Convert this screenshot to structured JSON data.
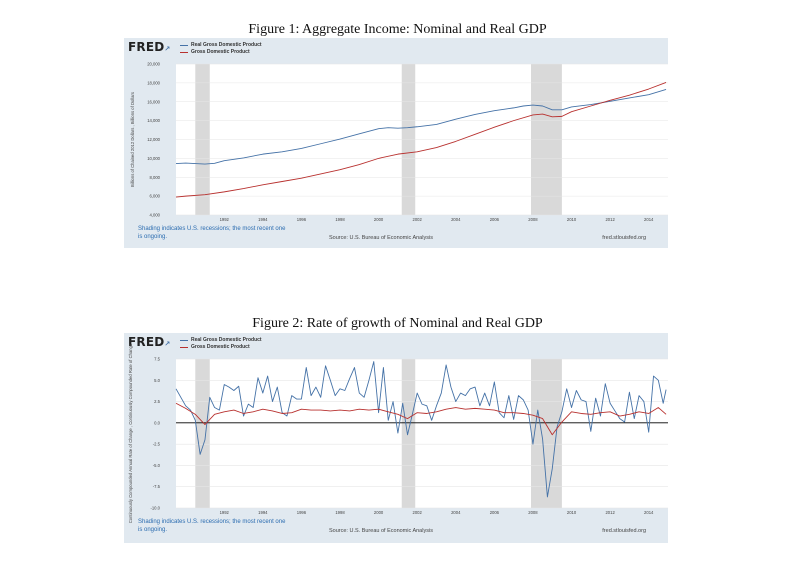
{
  "figure1": {
    "caption": "Figure 1: Aggregate Income: Nominal and Real GDP",
    "brand": "FRED",
    "shading_note": "Shading indicates U.S. recessions; the most recent one is ongoing.",
    "source": "Source: U.S. Bureau of Economic Analysis",
    "url": "fred.stlouisfed.org"
  },
  "figure2": {
    "caption": "Figure 2: Rate of growth of Nominal and Real GDP",
    "brand": "FRED",
    "shading_note": "Shading indicates U.S. recessions; the most recent one is ongoing.",
    "source": "Source: U.S. Bureau of Economic Analysis",
    "url": "fred.stlouisfed.org"
  },
  "colors": {
    "real": "#4572a7",
    "nominal": "#b8312f",
    "recession": "#d9d9d9",
    "plot_bg": "#ffffff",
    "panel_bg": "#e1e9f0"
  },
  "chart_data": [
    {
      "type": "line",
      "title": "Figure 1: Aggregate Income: Nominal and Real GDP",
      "ylabel": "Billions of Chained 2012 Dollars , Billions of Dollars",
      "xlabel": "",
      "ylim": [
        4000,
        20000
      ],
      "xlim": [
        1989.5,
        2015.0
      ],
      "yticks": [
        4000,
        6000,
        8000,
        10000,
        12000,
        14000,
        16000,
        18000,
        20000
      ],
      "ytick_labels": [
        "4,000",
        "6,000",
        "8,000",
        "10,000",
        "12,000",
        "14,000",
        "16,000",
        "18,000",
        "20,000"
      ],
      "xticks": [
        1992,
        1994,
        1996,
        1998,
        2000,
        2002,
        2004,
        2006,
        2008,
        2010,
        2012,
        2014
      ],
      "xtick_labels": [
        "1992",
        "1994",
        "1996",
        "1998",
        "2000",
        "2002",
        "2004",
        "2006",
        "2008",
        "2010",
        "2012",
        "2014"
      ],
      "recessions": [
        [
          1990.5,
          1991.25
        ],
        [
          2001.2,
          2001.9
        ],
        [
          2007.9,
          2009.5
        ]
      ],
      "series": [
        {
          "name": "Real Gross Domestic Product",
          "color": "#4572a7",
          "x": [
            1989.5,
            1990,
            1990.5,
            1991,
            1991.5,
            1992,
            1993,
            1994,
            1995,
            1996,
            1997,
            1998,
            1999,
            2000,
            2000.5,
            2001,
            2001.5,
            2002,
            2003,
            2004,
            2005,
            2006,
            2007,
            2007.5,
            2008,
            2008.5,
            2009,
            2009.5,
            2010,
            2011,
            2012,
            2013,
            2014,
            2014.9
          ],
          "values": [
            9450,
            9500,
            9450,
            9400,
            9480,
            9750,
            10050,
            10450,
            10700,
            11050,
            11550,
            12050,
            12600,
            13150,
            13250,
            13200,
            13250,
            13350,
            13600,
            14150,
            14650,
            15050,
            15350,
            15550,
            15650,
            15550,
            15150,
            15150,
            15450,
            15700,
            16050,
            16400,
            16750,
            17300
          ]
        },
        {
          "name": "Gross Domestic Product",
          "color": "#b8312f",
          "x": [
            1989.5,
            1990,
            1991,
            1992,
            1993,
            1994,
            1995,
            1996,
            1997,
            1998,
            1999,
            2000,
            2001,
            2002,
            2003,
            2004,
            2005,
            2006,
            2007,
            2008,
            2008.5,
            2009,
            2009.5,
            2010,
            2011,
            2012,
            2013,
            2014,
            2014.9
          ],
          "values": [
            5900,
            6000,
            6150,
            6450,
            6800,
            7200,
            7550,
            7900,
            8350,
            8800,
            9350,
            10000,
            10450,
            10700,
            11150,
            11800,
            12550,
            13300,
            14000,
            14600,
            14700,
            14400,
            14450,
            14950,
            15550,
            16150,
            16700,
            17350,
            18050
          ]
        }
      ]
    },
    {
      "type": "line",
      "title": "Figure 2: Rate of growth of Nominal and Real GDP",
      "ylabel": "Continuously Compounded Annual Rate of Change , Continuously Compounded Rate of Change",
      "xlabel": "",
      "ylim": [
        -10.0,
        7.5
      ],
      "xlim": [
        1989.5,
        2015.0
      ],
      "yticks": [
        -10.0,
        -7.5,
        -5.0,
        -2.5,
        0.0,
        2.5,
        5.0,
        7.5
      ],
      "ytick_labels": [
        "-10.0",
        "-7.5",
        "-5.0",
        "-2.5",
        "0.0",
        "2.5",
        "5.0",
        "7.5"
      ],
      "xticks": [
        1992,
        1994,
        1996,
        1998,
        2000,
        2002,
        2004,
        2006,
        2008,
        2010,
        2012,
        2014
      ],
      "xtick_labels": [
        "1992",
        "1994",
        "1996",
        "1998",
        "2000",
        "2002",
        "2004",
        "2006",
        "2008",
        "2010",
        "2012",
        "2014"
      ],
      "recessions": [
        [
          1990.5,
          1991.25
        ],
        [
          2001.2,
          2001.9
        ],
        [
          2007.9,
          2009.5
        ]
      ],
      "series": [
        {
          "name": "Real Gross Domestic Product",
          "color": "#4572a7",
          "x": [
            1989.5,
            1990,
            1990.25,
            1990.5,
            1990.75,
            1991,
            1991.25,
            1991.5,
            1991.75,
            1992,
            1992.25,
            1992.5,
            1992.75,
            1993,
            1993.25,
            1993.5,
            1993.75,
            1994,
            1994.25,
            1994.5,
            1994.75,
            1995,
            1995.25,
            1995.5,
            1995.75,
            1996,
            1996.25,
            1996.5,
            1996.75,
            1997,
            1997.25,
            1997.5,
            1997.75,
            1998,
            1998.25,
            1998.5,
            1998.75,
            1999,
            1999.25,
            1999.5,
            1999.75,
            2000,
            2000.25,
            2000.5,
            2000.75,
            2001,
            2001.25,
            2001.5,
            2001.75,
            2002,
            2002.25,
            2002.5,
            2002.75,
            2003,
            2003.25,
            2003.5,
            2003.75,
            2004,
            2004.25,
            2004.5,
            2004.75,
            2005,
            2005.25,
            2005.5,
            2005.75,
            2006,
            2006.25,
            2006.5,
            2006.75,
            2007,
            2007.25,
            2007.5,
            2007.75,
            2008,
            2008.25,
            2008.5,
            2008.75,
            2009,
            2009.25,
            2009.5,
            2009.75,
            2010,
            2010.25,
            2010.5,
            2010.75,
            2011,
            2011.25,
            2011.5,
            2011.75,
            2012,
            2012.25,
            2012.5,
            2012.75,
            2013,
            2013.25,
            2013.5,
            2013.75,
            2014,
            2014.25,
            2014.5,
            2014.75,
            2014.9
          ],
          "values": [
            4.0,
            2.0,
            1.5,
            0.3,
            -3.7,
            -2.0,
            3.0,
            1.8,
            1.5,
            4.5,
            4.2,
            3.8,
            4.3,
            0.8,
            2.2,
            1.8,
            5.3,
            3.5,
            5.5,
            2.5,
            4.2,
            1.2,
            0.8,
            3.2,
            2.8,
            2.8,
            6.5,
            3.2,
            4.2,
            3.0,
            6.7,
            5.0,
            3.2,
            4.0,
            3.8,
            5.2,
            6.5,
            3.5,
            3.0,
            5.0,
            7.2,
            1.2,
            6.5,
            0.3,
            2.5,
            -1.2,
            2.3,
            -1.4,
            1.0,
            3.5,
            2.2,
            2.0,
            0.3,
            2.0,
            3.5,
            6.8,
            4.2,
            2.5,
            3.5,
            3.2,
            4.0,
            4.2,
            2.0,
            3.5,
            2.0,
            4.8,
            1.2,
            0.6,
            3.2,
            0.4,
            3.2,
            2.7,
            1.5,
            -2.5,
            1.5,
            -1.9,
            -8.7,
            -5.4,
            -0.5,
            1.3,
            4.0,
            1.8,
            3.8,
            2.7,
            2.5,
            -1.0,
            2.9,
            0.8,
            4.6,
            2.3,
            1.4,
            0.5,
            0.1,
            3.6,
            0.5,
            3.2,
            2.5,
            -1.1,
            5.5,
            5.0,
            2.3,
            3.9
          ]
        },
        {
          "name": "Gross Domestic Product",
          "color": "#b8312f",
          "x": [
            1989.5,
            1990,
            1990.5,
            1991,
            1991.5,
            1992,
            1992.5,
            1993,
            1993.5,
            1994,
            1994.5,
            1995,
            1995.5,
            1996,
            1996.5,
            1997,
            1997.5,
            1998,
            1998.5,
            1999,
            1999.5,
            2000,
            2000.5,
            2001,
            2001.5,
            2002,
            2002.5,
            2003,
            2003.5,
            2004,
            2004.5,
            2005,
            2005.5,
            2006,
            2006.5,
            2007,
            2007.5,
            2008,
            2008.5,
            2009,
            2009.5,
            2010,
            2010.5,
            2011,
            2011.5,
            2012,
            2012.5,
            2013,
            2013.5,
            2014,
            2014.5,
            2014.9
          ],
          "values": [
            2.3,
            1.7,
            1.0,
            -0.2,
            1.0,
            1.3,
            1.5,
            1.1,
            1.3,
            1.6,
            1.4,
            1.1,
            1.2,
            1.6,
            1.5,
            1.5,
            1.4,
            1.5,
            1.4,
            1.6,
            1.5,
            1.6,
            1.3,
            1.0,
            0.5,
            1.2,
            1.1,
            1.3,
            1.6,
            1.8,
            1.6,
            1.7,
            1.6,
            1.5,
            1.2,
            1.2,
            1.1,
            0.9,
            0.5,
            -1.4,
            0.1,
            1.3,
            1.1,
            1.0,
            1.2,
            1.3,
            0.8,
            1.0,
            1.3,
            1.1,
            1.8,
            1.0
          ]
        }
      ]
    }
  ]
}
